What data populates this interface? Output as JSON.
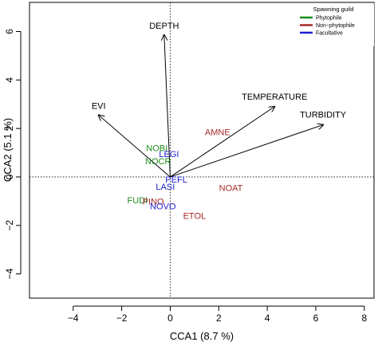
{
  "chart_data": {
    "type": "scatter",
    "title": "",
    "xlabel": "CCA1 (8.7 %)",
    "ylabel": "CCA2 (5.1 %)",
    "xlim": [
      -5.8,
      8.4
    ],
    "ylim": [
      -5.0,
      7.2
    ],
    "x_ticks": [
      -4,
      -2,
      0,
      2,
      4,
      6,
      8
    ],
    "y_ticks": [
      -4,
      -2,
      0,
      2,
      4,
      6
    ],
    "x_tick_labels": [
      "−4",
      "−2",
      "0",
      "2",
      "4",
      "6",
      "8"
    ],
    "y_tick_labels": [
      "−4",
      "−2",
      "0",
      "2",
      "4",
      "6"
    ],
    "reference_lines": {
      "x": 0,
      "y": 0,
      "style": "dotted"
    },
    "grid": false,
    "arrows": [
      {
        "label": "DEPTH",
        "x": -0.25,
        "y": 5.85
      },
      {
        "label": "EVI",
        "x": -2.95,
        "y": 2.55
      },
      {
        "label": "TEMPERATURE",
        "x": 4.3,
        "y": 2.9
      },
      {
        "label": "TURBIDITY",
        "x": 6.3,
        "y": 2.15
      }
    ],
    "species": [
      {
        "label": "NOBI",
        "x": -0.55,
        "y": 1.2,
        "guild": "Phytophile"
      },
      {
        "label": "LEGI",
        "x": -0.05,
        "y": 0.95,
        "guild": "Facultative"
      },
      {
        "label": "NOCR",
        "x": -0.5,
        "y": 0.65,
        "guild": "Phytophile"
      },
      {
        "label": "AMNE",
        "x": 1.95,
        "y": 1.85,
        "guild": "Non-phytophile"
      },
      {
        "label": "PEFL",
        "x": 0.25,
        "y": -0.1,
        "guild": "Facultative"
      },
      {
        "label": "LASI",
        "x": -0.2,
        "y": -0.4,
        "guild": "Facultative"
      },
      {
        "label": "NOAT",
        "x": 2.5,
        "y": -0.45,
        "guild": "Non-phytophile"
      },
      {
        "label": "FUDI",
        "x": -1.35,
        "y": -0.95,
        "guild": "Phytophile"
      },
      {
        "label": "PINO",
        "x": -0.7,
        "y": -1.0,
        "guild": "Non-phytophile"
      },
      {
        "label": "NOVO",
        "x": -0.3,
        "y": -1.2,
        "guild": "Facultative"
      },
      {
        "label": "ETOL",
        "x": 1.0,
        "y": -1.6,
        "guild": "Non-phytophile"
      }
    ],
    "legend": {
      "title": "Spawning guild",
      "placement": "top-right",
      "entries": [
        {
          "name": "Phytophile",
          "color": "#1a8c1a"
        },
        {
          "name": "Non−phytophile",
          "color": "#a52a2a"
        },
        {
          "name": "Facultative",
          "color": "#1f1fd6"
        }
      ]
    },
    "guild_colors": {
      "Phytophile": "#1a8c1a",
      "Non-phytophile": "#a52a2a",
      "Facultative": "#1f1fd6"
    }
  }
}
